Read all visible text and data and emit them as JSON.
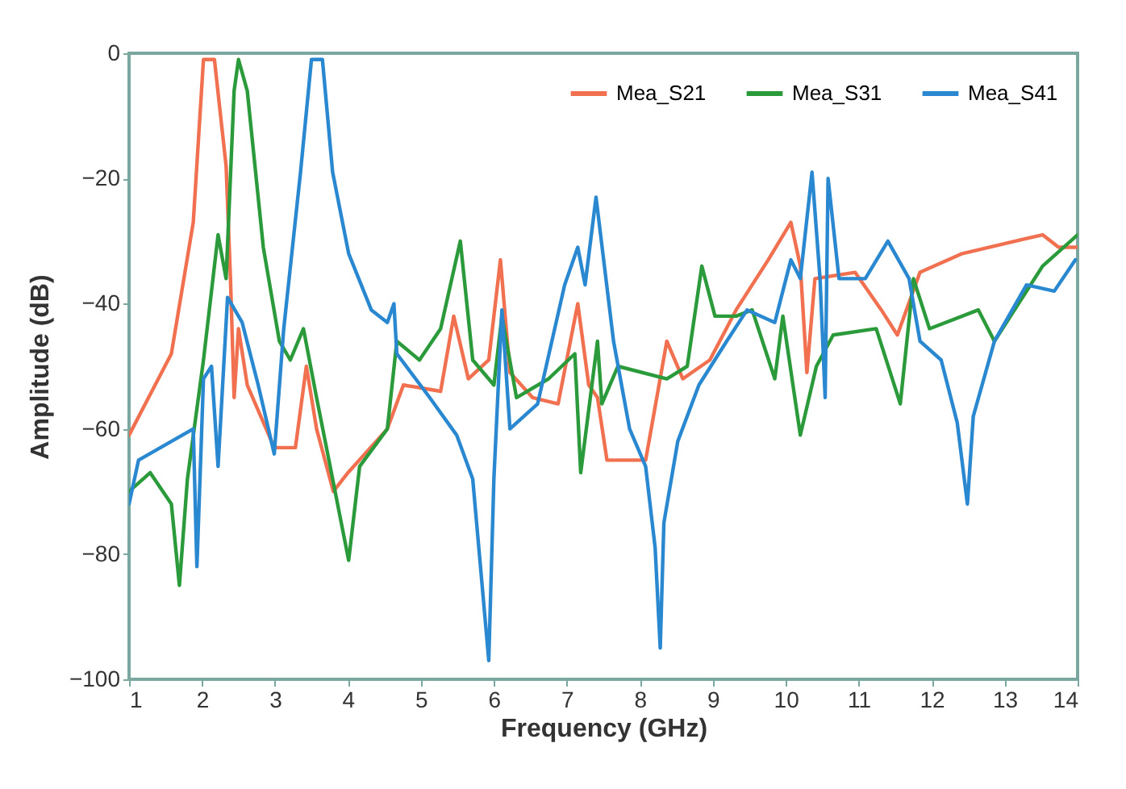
{
  "chart_data": {
    "type": "line",
    "xlabel": "Frequency (GHz)",
    "ylabel": "Amplitude (dB)",
    "xlim": [
      1,
      14
    ],
    "xticks": [
      1,
      2,
      3,
      4,
      5,
      6,
      7,
      8,
      9,
      10,
      11,
      12,
      13,
      14
    ],
    "ylim": [
      -100,
      0
    ],
    "yticks": [
      -100,
      -80,
      -60,
      -40,
      -20,
      0
    ],
    "legend": "top right",
    "series": [
      {
        "name": "Mea_S21",
        "color": "#f07050",
        "x": [
          1,
          1.58,
          1.88,
          2.02,
          2.17,
          2.33,
          2.39,
          2.44,
          2.5,
          2.62,
          2.99,
          3.28,
          3.43,
          3.57,
          3.8,
          4.0,
          4.54,
          4.76,
          5.27,
          5.45,
          5.65,
          5.93,
          6.09,
          6.22,
          6.53,
          6.88,
          7.15,
          7.3,
          7.42,
          7.55,
          8.08,
          8.37,
          8.59,
          8.96,
          9.32,
          9.76,
          10.07,
          10.2,
          10.29,
          10.4,
          10.95,
          11.31,
          11.53,
          11.84,
          12.42,
          13.52,
          13.74,
          14
        ],
        "values": [
          -61,
          -48,
          -27,
          -1,
          -1,
          -18,
          -36,
          -55,
          -44,
          -53,
          -63,
          -63,
          -50,
          -60,
          -70,
          -67,
          -60,
          -53,
          -54,
          -42,
          -52,
          -49,
          -33,
          -51,
          -55,
          -56,
          -40,
          -53,
          -55,
          -65,
          -65,
          -46,
          -52,
          -49,
          -41,
          -33,
          -27,
          -34,
          -51,
          -36,
          -35,
          -41,
          -45,
          -35,
          -32,
          -29,
          -31,
          -31
        ]
      },
      {
        "name": "Mea_S31",
        "color": "#2a9a3a",
        "x": [
          1,
          1.29,
          1.58,
          1.69,
          1.8,
          2.02,
          2.22,
          2.33,
          2.44,
          2.5,
          2.62,
          2.84,
          3.06,
          3.21,
          3.39,
          3.57,
          3.79,
          4.01,
          4.16,
          4.54,
          4.67,
          4.98,
          5.27,
          5.54,
          5.71,
          6.0,
          6.11,
          6.31,
          6.75,
          7.11,
          7.19,
          7.42,
          7.48,
          7.7,
          8.37,
          8.65,
          8.85,
          9.03,
          9.32,
          9.54,
          9.85,
          9.96,
          10.2,
          10.42,
          10.65,
          11.24,
          11.57,
          11.75,
          11.97,
          12.64,
          12.86,
          13.52,
          14
        ],
        "values": [
          -70,
          -67,
          -72,
          -85,
          -68,
          -49,
          -29,
          -36,
          -6,
          -1,
          -6,
          -31,
          -46,
          -49,
          -44,
          -55,
          -68,
          -81,
          -66,
          -60,
          -46,
          -49,
          -44,
          -30,
          -49,
          -53,
          -42,
          -55,
          -52,
          -48,
          -67,
          -46,
          -56,
          -50,
          -52,
          -50,
          -34,
          -42,
          -42,
          -41,
          -52,
          -42,
          -61,
          -50,
          -45,
          -44,
          -56,
          -36,
          -44,
          -41,
          -46,
          -34,
          -29
        ]
      },
      {
        "name": "Mea_S41",
        "color": "#2a88d0",
        "x": [
          1,
          1.13,
          1.58,
          1.88,
          1.93,
          2.02,
          2.13,
          2.22,
          2.35,
          2.55,
          2.77,
          2.99,
          3.12,
          3.35,
          3.5,
          3.65,
          3.79,
          4.01,
          4.32,
          4.54,
          4.63,
          4.67,
          5.12,
          5.49,
          5.71,
          5.93,
          6.0,
          6.11,
          6.22,
          6.6,
          6.97,
          7.15,
          7.25,
          7.4,
          7.64,
          7.86,
          8.08,
          8.21,
          8.28,
          8.33,
          8.52,
          8.81,
          9.19,
          9.47,
          9.85,
          10.07,
          10.2,
          10.36,
          10.47,
          10.54,
          10.58,
          10.73,
          11.09,
          11.4,
          11.69,
          11.84,
          12.13,
          12.35,
          12.49,
          12.57,
          12.86,
          13.3,
          13.68,
          13.97
        ],
        "values": [
          -72,
          -65,
          -62,
          -60,
          -82,
          -52,
          -50,
          -66,
          -39,
          -43,
          -53,
          -64,
          -44,
          -19,
          -1,
          -1,
          -19,
          -32,
          -41,
          -43,
          -40,
          -48,
          -55,
          -61,
          -68,
          -97,
          -68,
          -41,
          -60,
          -56,
          -37,
          -31,
          -37,
          -23,
          -46,
          -60,
          -66,
          -79,
          -95,
          -75,
          -62,
          -53,
          -46,
          -41,
          -43,
          -33,
          -36,
          -19,
          -36,
          -55,
          -20,
          -36,
          -36,
          -30,
          -36,
          -46,
          -49,
          -59,
          -72,
          -58,
          -46,
          -37,
          -38,
          -33
        ]
      }
    ]
  }
}
